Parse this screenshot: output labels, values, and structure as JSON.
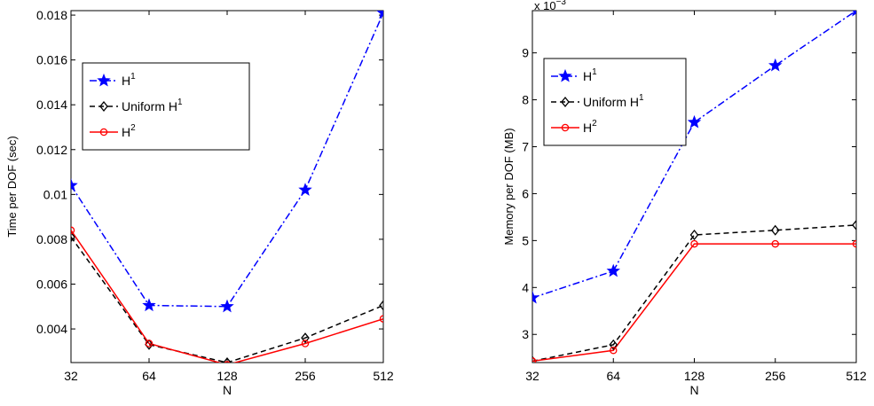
{
  "chart_data": [
    {
      "type": "line",
      "x_scale": "log2",
      "categories": [
        "32",
        "64",
        "128",
        "256",
        "512"
      ],
      "x": [
        32,
        64,
        128,
        256,
        512
      ],
      "xlabel": "N",
      "ylabel": "Time per DOF (sec)",
      "ylim": [
        0.0025,
        0.0182
      ],
      "yticks": [
        0.004,
        0.006,
        0.008,
        0.01,
        0.012,
        0.014,
        0.016,
        0.018
      ],
      "ytick_labels": [
        "0.004",
        "0.006",
        "0.008",
        "0.01",
        "0.012",
        "0.014",
        "0.016",
        "0.018"
      ],
      "exponent_label": "",
      "legend_position": "upper-left",
      "series": [
        {
          "name": "H",
          "sup": "1",
          "color": "#0000ff",
          "dash": "dashdot",
          "marker": "star",
          "values": [
            0.0104,
            0.00505,
            0.005,
            0.0102,
            0.0181
          ]
        },
        {
          "name": "Uniform H",
          "sup": "1",
          "color": "#000000",
          "dash": "dashed",
          "marker": "diamond",
          "values": [
            0.0081,
            0.0033,
            0.0025,
            0.0036,
            0.00505
          ]
        },
        {
          "name": "H",
          "sup": "2",
          "color": "#ff0000",
          "dash": "solid",
          "marker": "circle",
          "values": [
            0.0084,
            0.00335,
            0.0024,
            0.00335,
            0.00445
          ]
        }
      ]
    },
    {
      "type": "line",
      "x_scale": "log2",
      "categories": [
        "32",
        "64",
        "128",
        "256",
        "512"
      ],
      "x": [
        32,
        64,
        128,
        256,
        512
      ],
      "xlabel": "N",
      "ylabel": "Memory per DOF (MB)",
      "ylim": [
        2.4,
        9.9
      ],
      "yticks": [
        3,
        4,
        5,
        6,
        7,
        8,
        9
      ],
      "ytick_labels": [
        "3",
        "4",
        "5",
        "6",
        "7",
        "8",
        "9"
      ],
      "exponent_label": "x 10",
      "exponent_sup": "−3",
      "legend_position": "upper-left",
      "series": [
        {
          "name": "H",
          "sup": "1",
          "color": "#0000ff",
          "dash": "dashdot",
          "marker": "star",
          "values": [
            3.78,
            4.35,
            7.52,
            8.73,
            9.9
          ]
        },
        {
          "name": "Uniform H",
          "sup": "1",
          "color": "#000000",
          "dash": "dashed",
          "marker": "diamond",
          "values": [
            2.43,
            2.78,
            5.12,
            5.22,
            5.33
          ]
        },
        {
          "name": "H",
          "sup": "2",
          "color": "#ff0000",
          "dash": "solid",
          "marker": "circle",
          "values": [
            2.43,
            2.66,
            4.93,
            4.93,
            4.93
          ]
        }
      ]
    }
  ]
}
